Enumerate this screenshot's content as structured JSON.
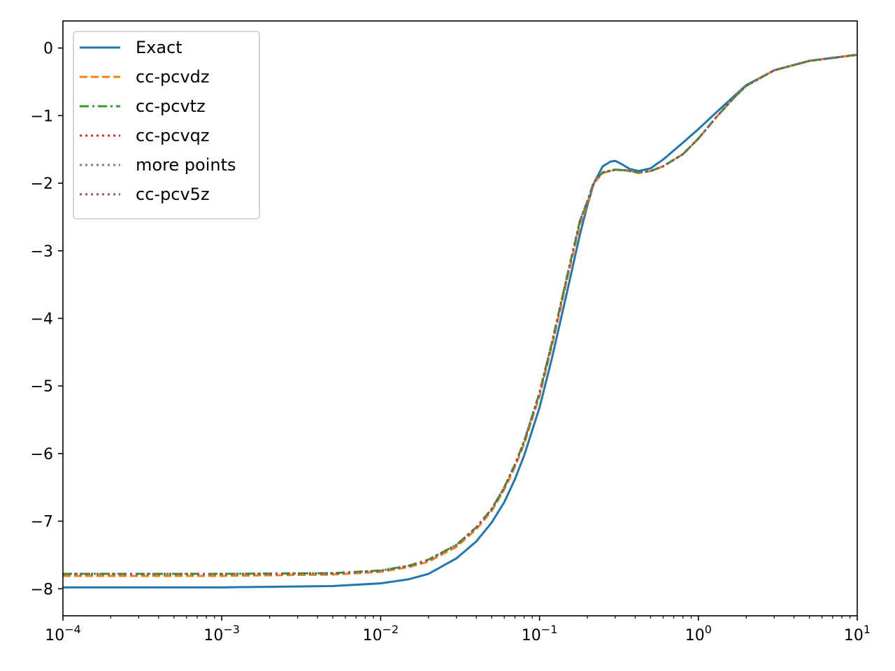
{
  "chart_data": {
    "type": "line",
    "title": "",
    "xlabel": "",
    "ylabel": "",
    "xscale": "log",
    "xlim": [
      0.0001,
      10
    ],
    "ylim": [
      -8.4,
      0.4
    ],
    "grid": false,
    "legend_position": "top-left",
    "x_ticks": [
      {
        "value": 0.0001,
        "base": "10",
        "exp": "−4"
      },
      {
        "value": 0.001,
        "base": "10",
        "exp": "−3"
      },
      {
        "value": 0.01,
        "base": "10",
        "exp": "−2"
      },
      {
        "value": 0.1,
        "base": "10",
        "exp": "−1"
      },
      {
        "value": 1,
        "base": "10",
        "exp": "0"
      },
      {
        "value": 10,
        "base": "10",
        "exp": "1"
      }
    ],
    "y_ticks": [
      {
        "value": 0,
        "label": "0"
      },
      {
        "value": -1,
        "label": "−1"
      },
      {
        "value": -2,
        "label": "−2"
      },
      {
        "value": -3,
        "label": "−3"
      },
      {
        "value": -4,
        "label": "−4"
      },
      {
        "value": -5,
        "label": "−5"
      },
      {
        "value": -6,
        "label": "−6"
      },
      {
        "value": -7,
        "label": "−7"
      },
      {
        "value": -8,
        "label": "−8"
      }
    ],
    "series": [
      {
        "name": "Exact",
        "color": "#1f77b4",
        "dash": "solid",
        "x": [
          0.0001,
          0.001,
          0.005,
          0.01,
          0.015,
          0.02,
          0.03,
          0.04,
          0.05,
          0.06,
          0.07,
          0.08,
          0.1,
          0.12,
          0.15,
          0.18,
          0.2,
          0.22,
          0.25,
          0.28,
          0.3,
          0.33,
          0.37,
          0.42,
          0.5,
          0.6,
          0.8,
          1.0,
          1.3,
          1.7,
          2.0,
          3.0,
          5.0,
          10.0
        ],
        "y": [
          -7.98,
          -7.98,
          -7.96,
          -7.92,
          -7.86,
          -7.78,
          -7.55,
          -7.3,
          -7.02,
          -6.72,
          -6.38,
          -6.03,
          -5.32,
          -4.58,
          -3.58,
          -2.75,
          -2.33,
          -2.0,
          -1.75,
          -1.68,
          -1.67,
          -1.72,
          -1.79,
          -1.82,
          -1.78,
          -1.65,
          -1.4,
          -1.2,
          -0.95,
          -0.7,
          -0.55,
          -0.33,
          -0.19,
          -0.1
        ]
      },
      {
        "name": "cc-pcvdz",
        "color": "#ff7f0e",
        "dash": "dashed",
        "x": [
          0.0001,
          0.001,
          0.005,
          0.01,
          0.015,
          0.02,
          0.03,
          0.04,
          0.05,
          0.06,
          0.07,
          0.08,
          0.1,
          0.12,
          0.15,
          0.18,
          0.2,
          0.22,
          0.25,
          0.3,
          0.35,
          0.42,
          0.5,
          0.6,
          0.8,
          1.0,
          1.3,
          1.7,
          2.0,
          3.0,
          5.0,
          10.0
        ],
        "y": [
          -7.81,
          -7.81,
          -7.79,
          -7.75,
          -7.68,
          -7.6,
          -7.38,
          -7.12,
          -6.85,
          -6.53,
          -6.2,
          -5.86,
          -5.15,
          -4.4,
          -3.4,
          -2.6,
          -2.3,
          -2.0,
          -1.85,
          -1.8,
          -1.81,
          -1.85,
          -1.82,
          -1.75,
          -1.57,
          -1.34,
          -1.02,
          -0.72,
          -0.56,
          -0.33,
          -0.19,
          -0.1
        ]
      },
      {
        "name": "cc-pcvtz",
        "color": "#2ca02c",
        "dash": "dashdot",
        "x": [
          0.0001,
          0.001,
          0.005,
          0.01,
          0.015,
          0.02,
          0.03,
          0.04,
          0.05,
          0.06,
          0.07,
          0.08,
          0.1,
          0.12,
          0.15,
          0.18,
          0.2,
          0.22,
          0.25,
          0.3,
          0.35,
          0.42,
          0.5,
          0.6,
          0.8,
          1.0,
          1.3,
          1.7,
          2.0,
          3.0,
          5.0,
          10.0
        ],
        "y": [
          -7.78,
          -7.78,
          -7.77,
          -7.73,
          -7.66,
          -7.57,
          -7.35,
          -7.09,
          -6.82,
          -6.5,
          -6.16,
          -5.82,
          -5.1,
          -4.35,
          -3.35,
          -2.55,
          -2.27,
          -1.98,
          -1.84,
          -1.8,
          -1.81,
          -1.84,
          -1.82,
          -1.75,
          -1.57,
          -1.34,
          -1.02,
          -0.72,
          -0.56,
          -0.33,
          -0.19,
          -0.1
        ]
      },
      {
        "name": "cc-pcvqz",
        "color": "#d62728",
        "dash": "dotted",
        "x": [
          0.0001,
          0.001,
          0.005,
          0.01,
          0.015,
          0.02,
          0.03,
          0.04,
          0.05,
          0.06,
          0.07,
          0.08,
          0.1,
          0.12,
          0.15,
          0.18,
          0.2,
          0.22,
          0.25,
          0.3,
          0.35,
          0.42,
          0.5,
          0.6,
          0.8,
          1.0,
          1.3,
          1.7,
          2.0,
          3.0,
          5.0,
          10.0
        ],
        "y": [
          -7.79,
          -7.79,
          -7.78,
          -7.74,
          -7.67,
          -7.58,
          -7.36,
          -7.1,
          -6.83,
          -6.51,
          -6.17,
          -5.83,
          -5.11,
          -4.36,
          -3.36,
          -2.56,
          -2.28,
          -1.99,
          -1.84,
          -1.8,
          -1.81,
          -1.84,
          -1.82,
          -1.75,
          -1.57,
          -1.34,
          -1.02,
          -0.72,
          -0.56,
          -0.33,
          -0.19,
          -0.1
        ]
      },
      {
        "name": "more points",
        "color": "#9467bd",
        "dash": "dotted",
        "x": [
          0.0001,
          0.001,
          0.005,
          0.01,
          0.015,
          0.02,
          0.03,
          0.04,
          0.05,
          0.06,
          0.07,
          0.08,
          0.1,
          0.12,
          0.15,
          0.18,
          0.2,
          0.22,
          0.25,
          0.3,
          0.35,
          0.42,
          0.5,
          0.6,
          0.8,
          1.0,
          1.3,
          1.7,
          2.0,
          3.0,
          5.0,
          10.0
        ],
        "y": [
          -7.79,
          -7.79,
          -7.78,
          -7.74,
          -7.67,
          -7.58,
          -7.36,
          -7.1,
          -6.83,
          -6.51,
          -6.17,
          -5.83,
          -5.11,
          -4.36,
          -3.36,
          -2.56,
          -2.28,
          -1.99,
          -1.84,
          -1.8,
          -1.81,
          -1.84,
          -1.82,
          -1.75,
          -1.57,
          -1.34,
          -1.02,
          -0.72,
          -0.56,
          -0.33,
          -0.19,
          -0.1
        ]
      },
      {
        "name": "cc-pcv5z",
        "color": "#8c564b",
        "dash": "dotted",
        "x": [
          0.0001,
          0.001,
          0.005,
          0.01,
          0.015,
          0.02,
          0.03,
          0.04,
          0.05,
          0.06,
          0.07,
          0.08,
          0.1,
          0.12,
          0.15,
          0.18,
          0.2,
          0.22,
          0.25,
          0.3,
          0.35,
          0.42,
          0.5,
          0.6,
          0.8,
          1.0,
          1.3,
          1.7,
          2.0,
          3.0,
          5.0,
          10.0
        ],
        "y": [
          -7.78,
          -7.78,
          -7.77,
          -7.73,
          -7.66,
          -7.57,
          -7.35,
          -7.09,
          -6.82,
          -6.5,
          -6.16,
          -5.82,
          -5.1,
          -4.35,
          -3.35,
          -2.55,
          -2.27,
          -1.98,
          -1.84,
          -1.8,
          -1.81,
          -1.84,
          -1.82,
          -1.75,
          -1.57,
          -1.34,
          -1.02,
          -0.72,
          -0.56,
          -0.33,
          -0.19,
          -0.1
        ]
      }
    ]
  }
}
